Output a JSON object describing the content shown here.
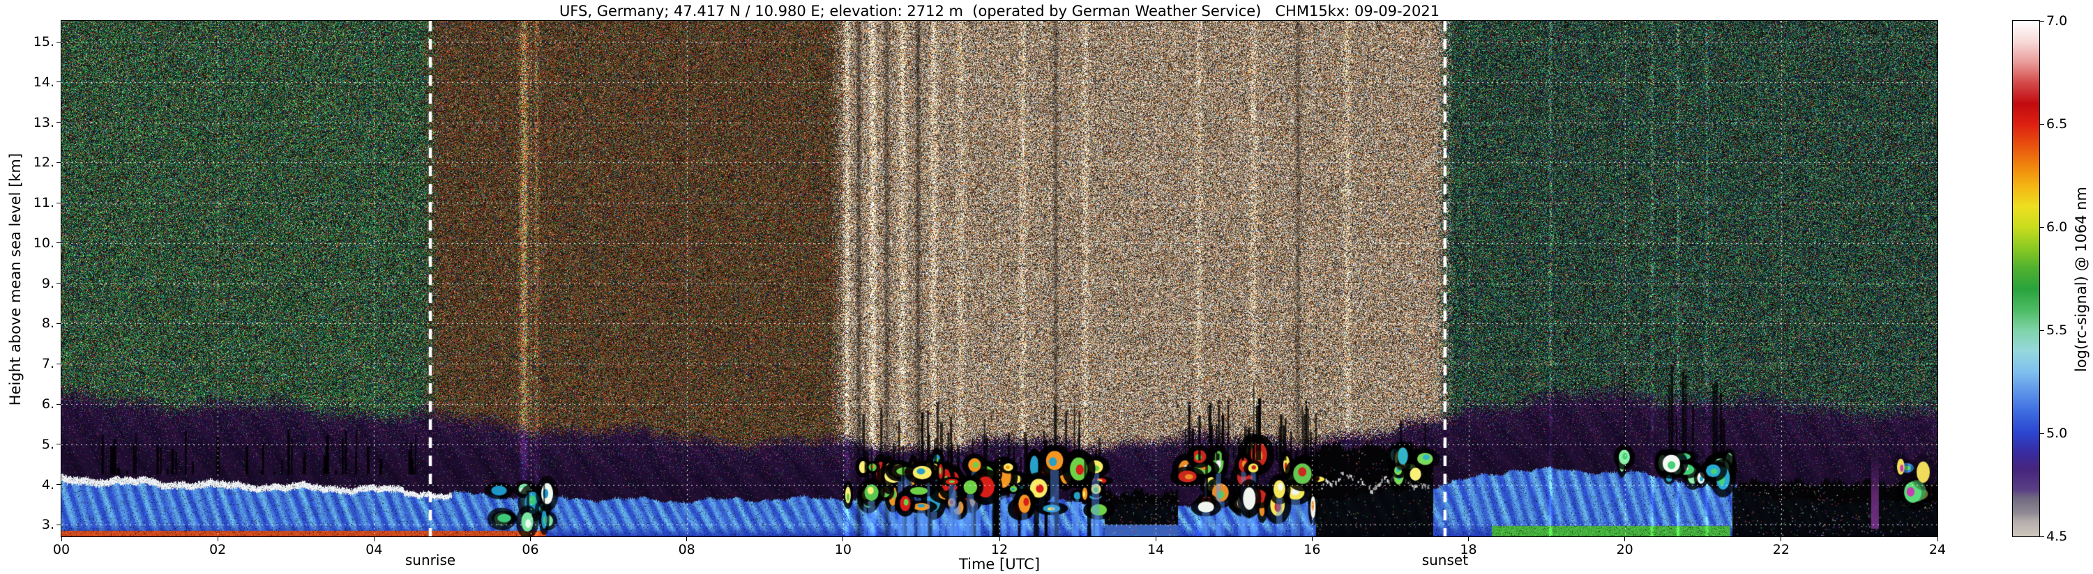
{
  "chart_data": {
    "type": "heatmap",
    "title": "UFS, Germany; 47.417 N / 10.980 E; elevation: 2712 m  (operated by German Weather Service)   CHM15kx: 09-09-2021",
    "xlabel": "Time [UTC]",
    "ylabel": "Height above mean sea level [km]",
    "colorbar_label": "log(rc-signal) @ 1064 nm",
    "sunrise_label": "sunrise",
    "sunset_label": "sunset",
    "station_header": {
      "station": "UFS, Germany",
      "latitude": "47.417 N",
      "longitude": "10.980 E",
      "elevation": "2712 m",
      "operator": "German Weather Service",
      "instrument": "CHM15kx",
      "date": "09-09-2021"
    },
    "x_range": [
      0,
      24
    ],
    "y_range_km": [
      2.712,
      15.52
    ],
    "value_range": [
      4.5,
      7.0
    ],
    "x_ticks": [
      {
        "t": 0,
        "label": "00"
      },
      {
        "t": 2,
        "label": "02"
      },
      {
        "t": 4,
        "label": "04"
      },
      {
        "t": 6,
        "label": "06"
      },
      {
        "t": 8,
        "label": "08"
      },
      {
        "t": 10,
        "label": "10"
      },
      {
        "t": 12,
        "label": "12"
      },
      {
        "t": 14,
        "label": "14"
      },
      {
        "t": 16,
        "label": "16"
      },
      {
        "t": 18,
        "label": "18"
      },
      {
        "t": 20,
        "label": "20"
      },
      {
        "t": 22,
        "label": "22"
      },
      {
        "t": 24,
        "label": "24"
      }
    ],
    "y_ticks": [
      {
        "h": 15,
        "label": "15."
      },
      {
        "h": 14,
        "label": "14."
      },
      {
        "h": 13,
        "label": "13."
      },
      {
        "h": 12,
        "label": "12."
      },
      {
        "h": 11,
        "label": "11."
      },
      {
        "h": 10,
        "label": "10."
      },
      {
        "h": 9,
        "label": "9."
      },
      {
        "h": 8,
        "label": "8."
      },
      {
        "h": 7,
        "label": "7."
      },
      {
        "h": 6,
        "label": "6."
      },
      {
        "h": 5,
        "label": "5."
      },
      {
        "h": 4,
        "label": "4."
      },
      {
        "h": 3,
        "label": "3."
      }
    ],
    "colorbar_ticks": [
      {
        "v": 7.0,
        "label": "7.0"
      },
      {
        "v": 6.5,
        "label": "6.5"
      },
      {
        "v": 6.0,
        "label": "6.0"
      },
      {
        "v": 5.5,
        "label": "5.5"
      },
      {
        "v": 5.0,
        "label": "5.0"
      },
      {
        "v": 4.5,
        "label": "4.5"
      }
    ],
    "grid": {
      "x_hours": [
        2,
        4,
        6,
        8,
        10,
        12,
        14,
        16,
        18,
        20,
        22
      ],
      "y_km": [
        3,
        4,
        5,
        6,
        7,
        8,
        9,
        10,
        11,
        12,
        13,
        14,
        15
      ]
    },
    "sun_lines": {
      "sunrise_utc": 4.72,
      "sunset_utc": 17.7
    },
    "colormap_stops": [
      [
        0.0,
        "#cfc8bf"
      ],
      [
        0.03,
        "#b3acaa"
      ],
      [
        0.045,
        "#8f8a94"
      ],
      [
        0.075,
        "#6f6880"
      ],
      [
        0.09,
        "#5a3f85"
      ],
      [
        0.13,
        "#46257c"
      ],
      [
        0.16,
        "#3a2a9e"
      ],
      [
        0.2,
        "#2b44cf"
      ],
      [
        0.24,
        "#3c6ae0"
      ],
      [
        0.28,
        "#5e94e8"
      ],
      [
        0.32,
        "#7fc0ee"
      ],
      [
        0.36,
        "#96d8dc"
      ],
      [
        0.4,
        "#7fd3a8"
      ],
      [
        0.44,
        "#4cbb63"
      ],
      [
        0.48,
        "#2aa23c"
      ],
      [
        0.52,
        "#4fb12f"
      ],
      [
        0.56,
        "#8cc922"
      ],
      [
        0.6,
        "#c8dd1e"
      ],
      [
        0.64,
        "#eede20"
      ],
      [
        0.68,
        "#f4b514"
      ],
      [
        0.72,
        "#f0830d"
      ],
      [
        0.76,
        "#e84f0e"
      ],
      [
        0.8,
        "#dd1f12"
      ],
      [
        0.84,
        "#c20b10"
      ],
      [
        0.88,
        "#d44a49"
      ],
      [
        0.92,
        "#e99c9a"
      ],
      [
        0.96,
        "#f7dad8"
      ],
      [
        1.0,
        "#ffffff"
      ]
    ],
    "render": {
      "seed": 77,
      "noise_regions": [
        {
          "t0": 0,
          "t1": 4.72,
          "density": 0.78,
          "bg": [
            6,
            9,
            6
          ],
          "colors": [
            [
              34,
              138,
              60
            ],
            [
              72,
              190,
              92
            ],
            [
              18,
              88,
              150
            ],
            [
              165,
              52,
              36
            ],
            [
              170,
              150,
              62
            ],
            [
              195,
              212,
              195
            ],
            [
              58,
              30,
              80
            ]
          ],
          "weights": [
            3,
            1.6,
            1.3,
            1.2,
            0.7,
            0.45,
            1.0
          ]
        },
        {
          "t0": 4.72,
          "t1": 9.95,
          "density": 0.84,
          "bg": [
            11,
            7,
            5
          ],
          "colors": [
            [
              152,
              62,
              30
            ],
            [
              112,
              72,
              36
            ],
            [
              92,
              110,
              45
            ],
            [
              52,
              128,
              60
            ],
            [
              36,
              55,
              130
            ],
            [
              188,
              168,
              140
            ],
            [
              198,
              62,
              40
            ]
          ],
          "weights": [
            2.6,
            2.0,
            1.5,
            1.4,
            1.0,
            0.8,
            1.0
          ]
        },
        {
          "t0": 9.95,
          "t1": 17.7,
          "density": 0.95,
          "bg": [
            58,
            48,
            40
          ],
          "colors": [
            [
              234,
              229,
              219
            ],
            [
              212,
              182,
              142
            ],
            [
              224,
              150,
              70
            ],
            [
              230,
              190,
              178
            ],
            [
              178,
              208,
              158
            ],
            [
              158,
              178,
              218
            ],
            [
              198,
              92,
              50
            ],
            [
              38,
              30,
              24
            ]
          ],
          "weights": [
            3.0,
            2.4,
            1.5,
            1.0,
            1.0,
            0.8,
            1.0,
            1.6
          ]
        },
        {
          "t0": 17.7,
          "t1": 24,
          "density": 0.74,
          "bg": [
            5,
            7,
            8
          ],
          "colors": [
            [
              30,
              128,
              62
            ],
            [
              62,
              180,
              100
            ],
            [
              20,
              80,
              140
            ],
            [
              150,
              46,
              36
            ],
            [
              142,
              162,
              150
            ],
            [
              50,
              26,
              72
            ],
            [
              168,
              158,
              72
            ]
          ],
          "weights": [
            2.6,
            1.4,
            1.6,
            1.0,
            0.55,
            1.2,
            0.6
          ]
        }
      ],
      "layer_top_km": [
        [
          0,
          4.22
        ],
        [
          2,
          4.05
        ],
        [
          4,
          3.95
        ],
        [
          5,
          3.78
        ],
        [
          6,
          3.68
        ],
        [
          8,
          3.6
        ],
        [
          10,
          3.66
        ],
        [
          12,
          3.74
        ],
        [
          13.4,
          3.5
        ],
        [
          14.3,
          3.52
        ],
        [
          16,
          3.6
        ],
        [
          17.8,
          4.05
        ],
        [
          18.6,
          4.38
        ],
        [
          20,
          4.3
        ],
        [
          21.3,
          4.0
        ],
        [
          22,
          3.62
        ],
        [
          24,
          3.5
        ]
      ],
      "purple_top_km": [
        [
          0,
          6.35
        ],
        [
          3,
          6.1
        ],
        [
          5,
          5.8
        ],
        [
          7,
          5.45
        ],
        [
          9,
          5.2
        ],
        [
          11,
          5.1
        ],
        [
          13,
          5.2
        ],
        [
          15,
          5.3
        ],
        [
          17,
          5.35
        ],
        [
          18,
          6.15
        ],
        [
          20,
          6.45
        ],
        [
          22,
          6.2
        ],
        [
          24,
          6.05
        ]
      ],
      "aerosol": {
        "blue": [
          45,
          80,
          205
        ],
        "cyan": [
          115,
          200,
          240
        ],
        "deep": [
          35,
          60,
          185
        ],
        "white_cap_until_utc": 5.0,
        "cap_color": [
          236,
          241,
          247
        ],
        "bottom_strips": [
          {
            "t0": 0,
            "t1": 6.2,
            "color": [
              205,
              75,
              30
            ],
            "max_km": 2.85
          },
          {
            "t0": 18.3,
            "t1": 21.35,
            "color": [
              70,
              175,
              62
            ],
            "max_km": 2.98
          }
        ]
      },
      "purple_zone": {
        "base": [
          27,
          12,
          43
        ],
        "specks": [
          [
            152,
            62,
            162
          ],
          [
            82,
            40,
            112
          ],
          [
            40,
            128,
            70
          ],
          [
            142,
            50,
            50
          ],
          [
            30,
            60,
            132
          ]
        ]
      },
      "bright_streaks": [
        {
          "t": 5.92,
          "w": 0.05,
          "amp": 1.1
        },
        {
          "t": 6.08,
          "w": 0.03,
          "amp": 0.5
        },
        {
          "t": 10.05,
          "w": 0.03,
          "amp": 0.7
        },
        {
          "t": 10.2,
          "w": 0.03,
          "amp": -0.45
        },
        {
          "t": 10.38,
          "w": 0.04,
          "amp": 0.8
        },
        {
          "t": 10.56,
          "w": 0.03,
          "amp": -0.4
        },
        {
          "t": 10.76,
          "w": 0.04,
          "amp": 0.6
        },
        {
          "t": 10.96,
          "w": 0.03,
          "amp": -0.45
        },
        {
          "t": 11.16,
          "w": 0.04,
          "amp": 0.55
        },
        {
          "t": 11.5,
          "w": 0.05,
          "amp": 0.35
        },
        {
          "t": 12.3,
          "w": 0.04,
          "amp": 0.4
        },
        {
          "t": 12.72,
          "w": 0.03,
          "amp": -0.35
        },
        {
          "t": 13.1,
          "w": 0.04,
          "amp": 0.4
        },
        {
          "t": 14.55,
          "w": 0.04,
          "amp": 0.35
        },
        {
          "t": 15.25,
          "w": 0.04,
          "amp": 0.4
        },
        {
          "t": 15.82,
          "w": 0.03,
          "amp": -0.35
        },
        {
          "t": 16.45,
          "w": 0.04,
          "amp": 0.4
        },
        {
          "t": 19.05,
          "w": 0.02,
          "amp": 0.55
        },
        {
          "t": 20.35,
          "w": 0.02,
          "amp": 0.45
        },
        {
          "t": 20.68,
          "w": 0.02,
          "amp": 0.45
        },
        {
          "t": 21.05,
          "w": 0.02,
          "amp": 0.4
        }
      ],
      "black_zones": [
        {
          "t0": 13.35,
          "t1": 14.28,
          "top_km": 3.8,
          "blue_bottom": true
        },
        {
          "t0": 16.05,
          "t1": 17.55,
          "top_km": 4.95,
          "blue_bottom": false
        },
        {
          "t0": 21.38,
          "t1": 24,
          "top_km": 4.05,
          "blue_bottom": false
        }
      ],
      "cloud_clusters": [
        {
          "type": "blob",
          "t0": 5.55,
          "t1": 6.25,
          "h0": 3.05,
          "h1": 3.9,
          "count": 10,
          "halo": 0.75,
          "streak_up": 0.3,
          "streak_len": 0.8,
          "blue_below": 0,
          "colors": [
            [
              60,
              200,
              120
            ],
            [
              120,
              230,
              160
            ],
            [
              30,
              150,
              200
            ],
            [
              240,
              250,
              240
            ]
          ]
        },
        {
          "type": "blob",
          "t0": 10.0,
          "t1": 10.65,
          "h0": 3.5,
          "h1": 4.5,
          "count": 12,
          "halo": 0.85,
          "streak_up": 0.5,
          "streak_len": 1.0,
          "blue_below": 0.2,
          "colors": [
            [
              250,
              240,
              120
            ],
            [
              240,
              150,
              40
            ],
            [
              212,
              40,
              30
            ],
            [
              90,
              200,
              80
            ]
          ]
        },
        {
          "type": "blob",
          "t0": 10.7,
          "t1": 13.35,
          "h0": 3.3,
          "h1": 4.6,
          "count": 60,
          "halo": 0.9,
          "streak_up": 0.55,
          "streak_len": 1.2,
          "blue_below": 0.45,
          "colors": [
            [
              215,
              30,
              25
            ],
            [
              245,
              150,
              35
            ],
            [
              250,
              235,
              100
            ],
            [
              110,
              210,
              70
            ],
            [
              40,
              160,
              200
            ]
          ]
        },
        {
          "type": "blob",
          "t0": 14.3,
          "t1": 16.05,
          "h0": 3.3,
          "h1": 4.8,
          "count": 34,
          "halo": 0.85,
          "streak_up": 0.6,
          "streak_len": 1.4,
          "blue_below": 0.3,
          "colors": [
            [
              245,
              230,
              90
            ],
            [
              235,
              140,
              40
            ],
            [
              205,
              40,
              30
            ],
            [
              100,
              200,
              80
            ],
            [
              240,
              245,
              240
            ]
          ]
        },
        {
          "type": "outline",
          "t0": 16.1,
          "t1": 17.5,
          "h0": 3.85,
          "h1": 4.35,
          "count": 0,
          "halo": 0,
          "streak_up": 0,
          "streak_len": 0,
          "blue_below": 0,
          "colors": [
            [
              235,
              235,
              235
            ],
            [
              175,
              175,
              175
            ]
          ]
        },
        {
          "type": "blob",
          "t0": 17.0,
          "t1": 17.45,
          "h0": 4.1,
          "h1": 4.75,
          "count": 8,
          "halo": 0.7,
          "streak_up": 0.3,
          "streak_len": 0.8,
          "blue_below": 0,
          "colors": [
            [
              120,
              220,
              90
            ],
            [
              250,
              240,
              120
            ],
            [
              50,
              180,
              200
            ]
          ]
        },
        {
          "type": "blob",
          "t0": 19.9,
          "t1": 21.35,
          "h0": 4.15,
          "h1": 4.7,
          "count": 16,
          "halo": 0.8,
          "streak_up": 0.7,
          "streak_len": 1.8,
          "blue_below": 0,
          "colors": [
            [
              70,
              210,
              120
            ],
            [
              140,
              240,
              170
            ],
            [
              40,
              170,
              210
            ],
            [
              245,
              250,
              245
            ]
          ]
        },
        {
          "type": "blob",
          "t0": 23.5,
          "t1": 23.85,
          "h0": 3.3,
          "h1": 4.5,
          "count": 6,
          "halo": 0.3,
          "streak_up": 0,
          "streak_len": 0,
          "blue_below": 0,
          "colors": [
            [
              200,
              60,
              180
            ],
            [
              90,
              220,
              120
            ],
            [
              240,
              220,
              90
            ],
            [
              60,
              140,
              220
            ]
          ]
        },
        {
          "type": "spikes",
          "t0": 0.4,
          "t1": 4.6,
          "h0": 4.25,
          "h1": 5.4,
          "count": 42,
          "halo": 0,
          "streak_up": 0,
          "streak_len": 0,
          "blue_below": 0,
          "colors": []
        },
        {
          "type": "spikes",
          "t0": 14.4,
          "t1": 16.0,
          "h0": 4.6,
          "h1": 6.2,
          "count": 26,
          "halo": 0,
          "streak_up": 0,
          "streak_len": 0,
          "blue_below": 0,
          "colors": []
        }
      ],
      "subcloud_columns": {
        "t0": 10.75,
        "t1": 13.3,
        "count": 34,
        "top_km": 3.6
      },
      "purple_column": {
        "t": 23.2,
        "w": 0.1,
        "h0": 2.9,
        "h1": 4.7,
        "color": [
          122,
          50,
          142
        ]
      }
    }
  }
}
